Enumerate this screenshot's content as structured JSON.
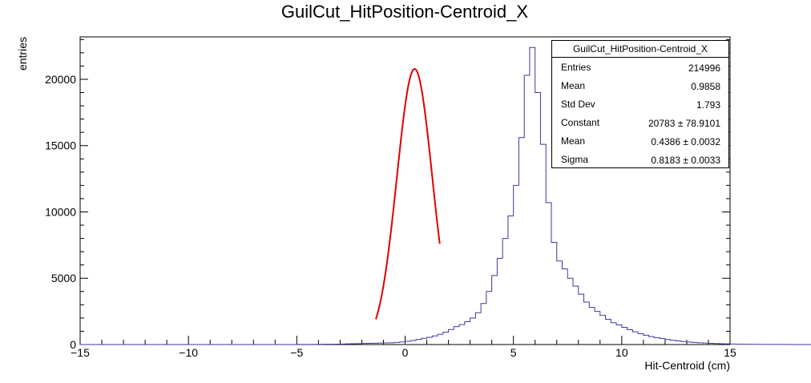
{
  "chart_data": {
    "type": "bar",
    "style": "step-histogram",
    "title": "GuilCut_HitPosition-Centroid_X",
    "xlabel": "Hit-Centroid (cm)",
    "ylabel": "entries",
    "xlim": [
      -15,
      15
    ],
    "ylim": [
      0,
      23200
    ],
    "xticks": [
      -15,
      -10,
      -5,
      0,
      5,
      10,
      15
    ],
    "xtick_labels": [
      "−15",
      "−10",
      "−5",
      "0",
      "5",
      "10",
      "15"
    ],
    "yticks": [
      0,
      5000,
      10000,
      15000,
      20000
    ],
    "ytick_labels": [
      "0",
      "5000",
      "10000",
      "15000",
      "20000"
    ],
    "bin_edges_start": -15,
    "bin_width": 0.25,
    "counts": [
      0,
      0,
      0,
      0,
      0,
      0,
      0,
      0,
      0,
      0,
      0,
      0,
      0,
      0,
      0,
      0,
      0,
      0,
      0,
      0,
      0,
      0,
      0,
      0,
      0,
      0,
      0,
      0,
      0,
      0,
      0,
      0,
      0,
      0,
      0,
      0,
      0,
      0,
      0,
      0,
      5,
      5,
      10,
      10,
      15,
      20,
      25,
      30,
      40,
      50,
      60,
      70,
      80,
      90,
      100,
      110,
      120,
      130,
      160,
      200,
      240,
      300,
      380,
      470,
      540,
      650,
      770,
      930,
      1130,
      1350,
      1500,
      1720,
      2000,
      2400,
      3100,
      4000,
      5200,
      6500,
      8000,
      9700,
      12000,
      15600,
      20300,
      22400,
      19000,
      15100,
      10700,
      7700,
      6300,
      5700,
      5000,
      4400,
      3800,
      3200,
      2800,
      2500,
      2200,
      1900,
      1650,
      1480,
      1300,
      1120,
      960,
      820,
      700,
      600,
      520,
      450,
      380,
      320,
      270,
      230,
      190,
      160,
      130,
      110,
      90,
      75,
      60,
      50,
      40,
      32,
      25,
      20,
      15,
      12,
      10,
      8,
      6,
      5,
      4,
      3,
      2,
      2,
      1,
      1,
      1,
      0,
      0,
      0,
      0,
      0,
      0,
      0,
      0,
      0,
      0,
      0,
      0,
      0,
      0,
      0,
      0,
      0,
      0,
      0,
      0,
      0,
      0,
      0,
      0,
      0,
      0,
      0,
      0,
      0,
      0,
      0,
      0,
      0,
      0,
      0,
      0,
      0,
      0,
      0,
      0,
      0,
      0,
      0
    ],
    "fit": {
      "function": "gaus",
      "constant": 20783,
      "mean": 0.4386,
      "sigma": 0.8183,
      "range": [
        -1.35,
        1.6
      ]
    },
    "grid": false,
    "legend_position": "top-right"
  },
  "colors": {
    "histogram": "#3a3aa0",
    "fit": "#e00000",
    "axis": "#000000"
  },
  "stats": {
    "title": "GuilCut_HitPosition-Centroid_X",
    "rows": [
      {
        "label": "Entries",
        "value": "214996"
      },
      {
        "label": "Mean",
        "value": "0.9858"
      },
      {
        "label": "Std Dev",
        "value": "1.793"
      },
      {
        "label": "Constant",
        "value": "20783 ± 78.9101"
      },
      {
        "label": "Mean",
        "value": "0.4386 ± 0.0032"
      },
      {
        "label": "Sigma",
        "value": "0.8183 ± 0.0033"
      }
    ]
  }
}
